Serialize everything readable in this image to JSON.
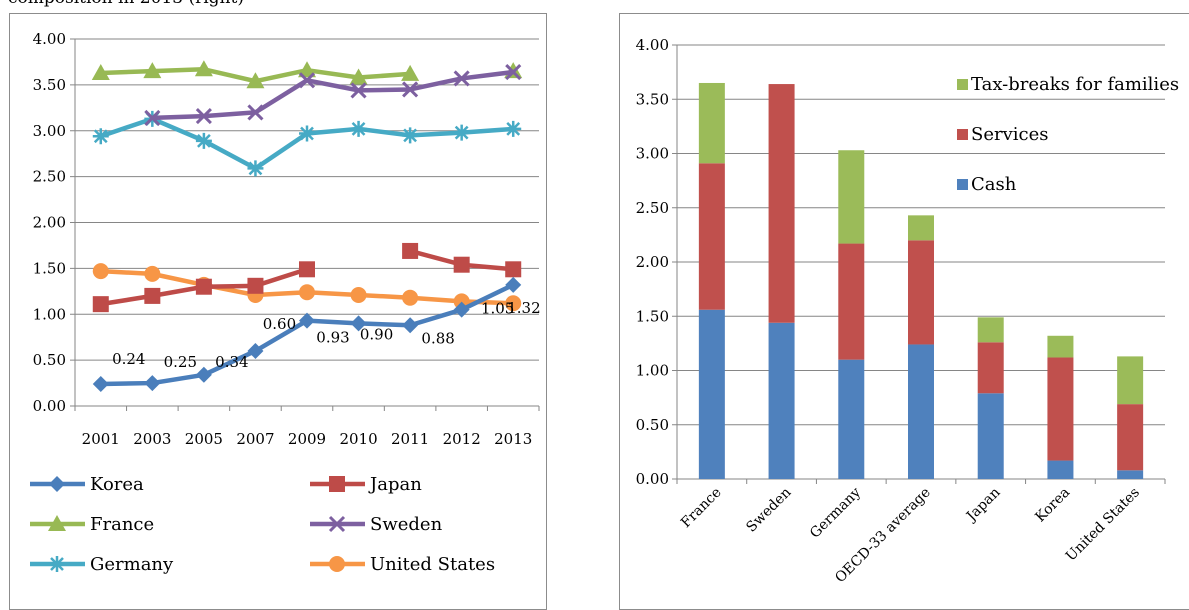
{
  "caption": "composition in 2013 (right)",
  "colors": {
    "Korea": "#4a7ebb",
    "Japan": "#be4b48",
    "France": "#98b954",
    "Sweden": "#7d60a0",
    "Germany": "#46aac5",
    "United States": "#f79646",
    "Cash": "#4f81bd",
    "Services": "#c0504d",
    "Tax-breaks for families": "#9bbb59"
  },
  "chart_data": [
    {
      "type": "line",
      "categories": [
        "2001",
        "2003",
        "2005",
        "2007",
        "2009",
        "2010",
        "2011",
        "2012",
        "2013"
      ],
      "ylim": [
        0,
        4
      ],
      "y_ticks": [
        "0.00",
        "0.50",
        "1.00",
        "1.50",
        "2.00",
        "2.50",
        "3.00",
        "3.50",
        "4.00"
      ],
      "legend_position": "bottom",
      "series": [
        {
          "name": "Korea",
          "marker": "diamond",
          "values": [
            0.24,
            0.25,
            0.34,
            0.6,
            0.93,
            0.9,
            0.88,
            1.05,
            1.32
          ],
          "data_labels": [
            "0.24",
            "0.25",
            "0.34",
            "0.60",
            "0.93",
            "0.90",
            "0.88",
            "1.05",
            "1.32"
          ]
        },
        {
          "name": "Japan",
          "marker": "square",
          "values": [
            1.11,
            1.2,
            1.3,
            1.31,
            1.49,
            null,
            1.69,
            1.54,
            1.49
          ]
        },
        {
          "name": "France",
          "marker": "triangle",
          "values": [
            3.63,
            3.65,
            3.67,
            3.54,
            3.66,
            3.58,
            3.62,
            null,
            3.65
          ]
        },
        {
          "name": "Sweden",
          "marker": "x",
          "values": [
            null,
            3.14,
            3.16,
            3.2,
            3.55,
            3.44,
            3.45,
            3.57,
            3.64
          ]
        },
        {
          "name": "Germany",
          "marker": "star",
          "values": [
            2.94,
            3.13,
            2.89,
            2.59,
            2.97,
            3.02,
            2.95,
            2.98,
            3.02
          ]
        },
        {
          "name": "United States",
          "marker": "circle",
          "values": [
            1.47,
            1.44,
            1.32,
            1.21,
            1.24,
            1.21,
            1.18,
            1.14,
            1.12
          ]
        }
      ]
    },
    {
      "type": "bar",
      "stacked": true,
      "categories": [
        "France",
        "Sweden",
        "Germany",
        "OECD-33 average",
        "Japan",
        "Korea",
        "United States"
      ],
      "ylim": [
        0,
        4
      ],
      "y_ticks": [
        "0.00",
        "0.50",
        "1.00",
        "1.50",
        "2.00",
        "2.50",
        "3.00",
        "3.50",
        "4.00"
      ],
      "legend_position": "top-right",
      "series": [
        {
          "name": "Cash",
          "values": [
            1.56,
            1.44,
            1.1,
            1.24,
            0.79,
            0.17,
            0.08
          ]
        },
        {
          "name": "Services",
          "values": [
            1.35,
            2.2,
            1.07,
            0.96,
            0.47,
            0.95,
            0.61
          ]
        },
        {
          "name": "Tax-breaks for families",
          "values": [
            0.74,
            0.0,
            0.86,
            0.23,
            0.23,
            0.2,
            0.44
          ]
        }
      ],
      "legend_order": [
        "Tax-breaks for families",
        "Services",
        "Cash"
      ]
    }
  ]
}
